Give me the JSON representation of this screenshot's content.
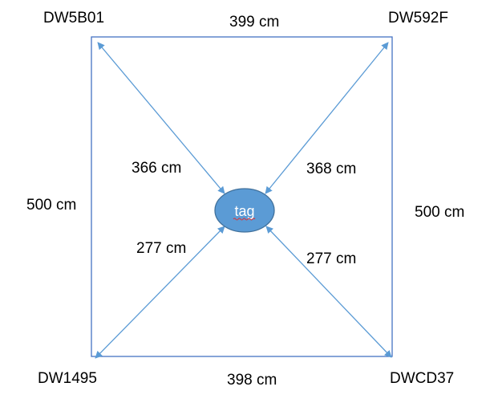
{
  "anchors": {
    "top_left": "DW5B01",
    "top_right": "DW592F",
    "bottom_left": "DW1495",
    "bottom_right": "DWCD37"
  },
  "sides": {
    "top": "399 cm",
    "bottom": "398 cm",
    "left": "500 cm",
    "right": "500 cm"
  },
  "distances": {
    "top_left": "366 cm",
    "top_right": "368 cm",
    "bottom_left": "277 cm",
    "bottom_right": "277 cm"
  },
  "tag": {
    "label": "tag"
  },
  "colors": {
    "frame": "#4472c4",
    "arrow": "#5b9bd5",
    "tag_fill": "#5b9bd5",
    "tag_stroke": "#41719c",
    "text": "#000000",
    "tag_text": "#ffffff",
    "underline": "#e03030"
  }
}
